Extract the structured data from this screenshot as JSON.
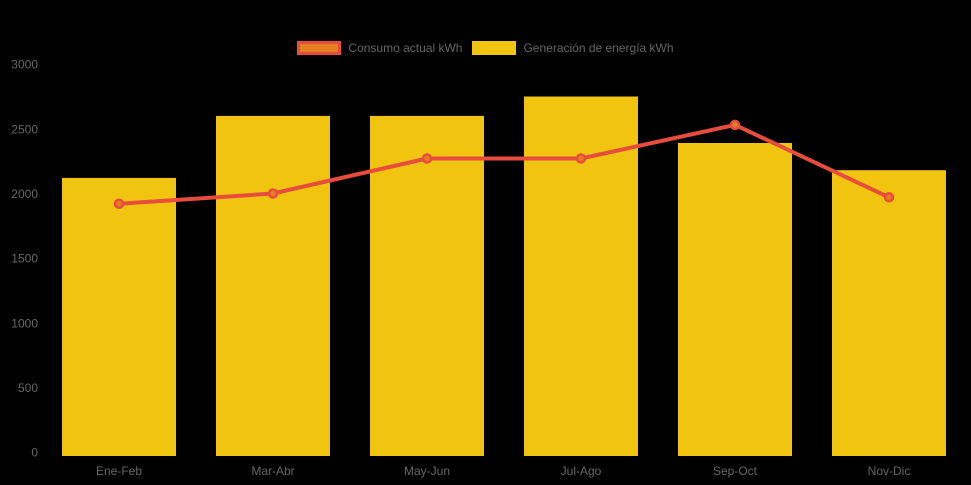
{
  "chart_data": {
    "type": "bar",
    "title": "",
    "xlabel": "",
    "ylabel": "",
    "categories": [
      "Ene-Feb",
      "Mar-Abr",
      "May-Jun",
      "Jul-Ago",
      "Sep-Oct",
      "Nov-Dic"
    ],
    "series": [
      {
        "name": "Consumo actual kWh",
        "type": "line",
        "values": [
          1950,
          2030,
          2300,
          2300,
          2560,
          2000
        ],
        "line_color": "#e74c3c",
        "point_fill": "#e67e22",
        "point_border": "#e74c3c"
      },
      {
        "name": "Generación de energía kWh",
        "type": "bar",
        "values": [
          2150,
          2630,
          2630,
          2780,
          2420,
          2210
        ],
        "bar_color": "#f1c40f"
      }
    ],
    "ylim": [
      0,
      3000
    ],
    "y_ticks": [
      "3000",
      "2500",
      "2000",
      "1500",
      "1000",
      "500",
      "0"
    ],
    "y_tick_values": [
      3000,
      2500,
      2000,
      1500,
      1000,
      500,
      0
    ],
    "legend_position": "top",
    "grid": false,
    "background_color": "#000000",
    "text_color": "#666666"
  },
  "legend": {
    "items": [
      {
        "label": "Consumo actual kWh",
        "fill": "#e67e22",
        "border": "#e74c3c"
      },
      {
        "label": "Generación de energía kWh",
        "fill": "#f1c40f",
        "border": "#f1c40f"
      }
    ]
  }
}
